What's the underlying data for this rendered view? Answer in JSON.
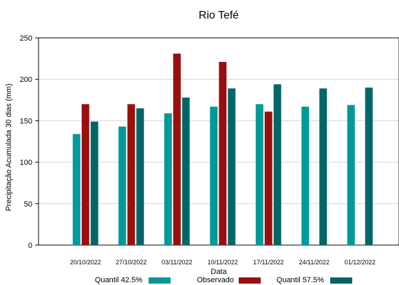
{
  "chart_data": {
    "type": "bar",
    "title": "Rio Tefé",
    "xlabel": "Data",
    "ylabel": "Precipitação Acumulada 30 dias (mm)",
    "ylim": [
      0,
      250
    ],
    "yticks": [
      0,
      50,
      100,
      150,
      200,
      250
    ],
    "grid": true,
    "legend_position": "bottom",
    "categories": [
      "20/10/2022",
      "27/10/2022",
      "03/11/2022",
      "10/11/2022",
      "17/11/2022",
      "24/11/2022",
      "01/12/2022"
    ],
    "series": [
      {
        "name": "Quantil 42.5%",
        "color": "#009999",
        "values": [
          134,
          143,
          159,
          167,
          170,
          167,
          169
        ]
      },
      {
        "name": "Observado",
        "color": "#990f0f",
        "values": [
          170,
          170,
          231,
          221,
          161,
          null,
          null
        ]
      },
      {
        "name": "Quantil 57.5%",
        "color": "#006666",
        "values": [
          149,
          165,
          178,
          189,
          194,
          189,
          190
        ]
      }
    ]
  }
}
